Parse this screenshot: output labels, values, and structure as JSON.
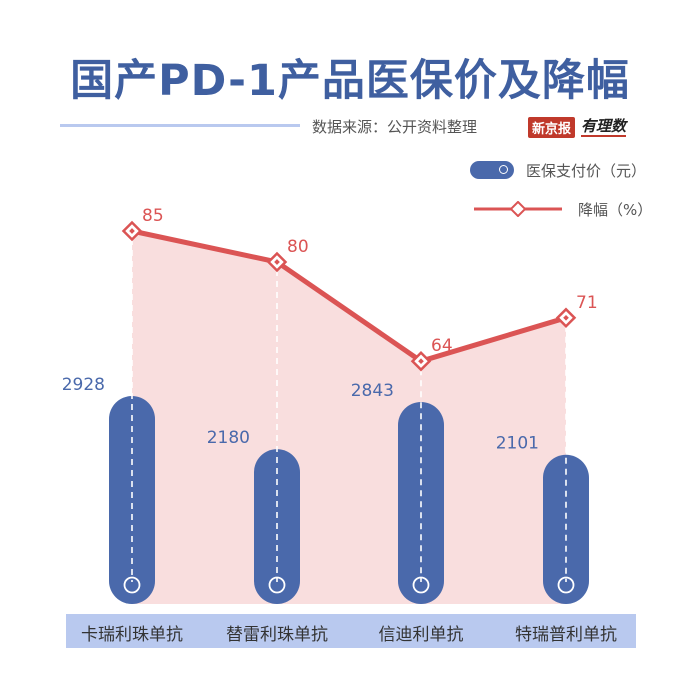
{
  "header": {
    "title": "国产PD-1产品医保价及降幅",
    "source": "数据来源：公开资料整理",
    "brand_name": "新京报",
    "brand_tag": "有理数"
  },
  "legend": {
    "bar_label": "医保支付价（元）",
    "line_label": "降幅（%）"
  },
  "colors": {
    "bar": "#4a69ab",
    "line": "#db5454",
    "area": "#f9dcdc",
    "category_band": "#b9c9ef",
    "title": "#3f5fa0"
  },
  "chart_data": {
    "type": "bar",
    "categories": [
      "卡瑞利珠单抗",
      "替雷利珠单抗",
      "信迪利单抗",
      "特瑞普利单抗"
    ],
    "series": [
      {
        "name": "医保支付价（元）",
        "type": "bar",
        "values": [
          2928,
          2180,
          2843,
          2101
        ]
      },
      {
        "name": "降幅（%）",
        "type": "line",
        "values": [
          85,
          80,
          64,
          71
        ]
      }
    ],
    "legend_position": "top-right",
    "grid": false
  }
}
